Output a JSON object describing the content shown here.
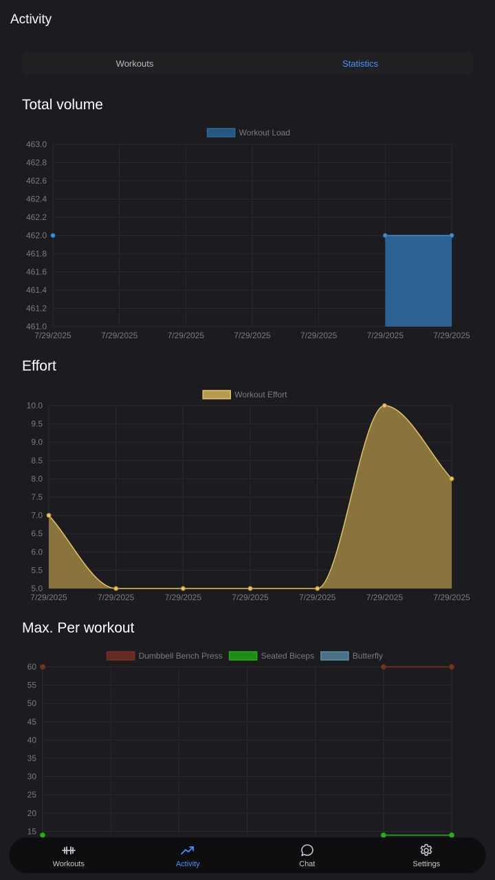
{
  "app": {
    "title": "Activity"
  },
  "tabs": [
    {
      "label": "Workouts",
      "active": false
    },
    {
      "label": "Statistics",
      "active": true
    }
  ],
  "sections": {
    "volume": {
      "title": "Total volume"
    },
    "effort": {
      "title": "Effort"
    },
    "max": {
      "title": "Max. Per workout"
    }
  },
  "chart_data": [
    {
      "type": "bar",
      "title": "Total volume",
      "categories": [
        "7/29/2025",
        "7/29/2025",
        "7/29/2025",
        "7/29/2025",
        "7/29/2025",
        "7/29/2025",
        "7/29/2025"
      ],
      "series": [
        {
          "name": "Workout Load",
          "color": "#2d6a9f",
          "points": [
            [
              0,
              462
            ],
            [
              5,
              462
            ],
            [
              6,
              462
            ]
          ]
        }
      ],
      "ylim": [
        461,
        463
      ],
      "ytick_step": 0.2,
      "grid": true,
      "legend": "top-center"
    },
    {
      "type": "area",
      "title": "Effort",
      "categories": [
        "7/29/2025",
        "7/29/2025",
        "7/29/2025",
        "7/29/2025",
        "7/29/2025",
        "7/29/2025",
        "7/29/2025"
      ],
      "series": [
        {
          "name": "Workout Effort",
          "color": "#e8c460",
          "values": [
            7,
            5,
            5,
            5,
            5,
            10,
            8
          ]
        }
      ],
      "ylim": [
        5,
        10
      ],
      "ytick_step": 0.5,
      "grid": true,
      "legend": "top-center"
    },
    {
      "type": "line",
      "title": "Max. Per workout",
      "categories": [
        "7/29/2025",
        "7/29/2025",
        "7/29/2025",
        "7/29/2025",
        "7/29/2025",
        "7/29/2025",
        "7/29/2025"
      ],
      "series": [
        {
          "name": "Dumbbell Bench Press",
          "color": "#7a3220",
          "points": [
            [
              0,
              60
            ],
            [
              5,
              60
            ],
            [
              6,
              60
            ]
          ]
        },
        {
          "name": "Seated Biceps",
          "color": "#22b014",
          "points": [
            [
              0,
              14
            ],
            [
              5,
              14
            ],
            [
              6,
              14
            ]
          ]
        },
        {
          "name": "Butterfly",
          "color": "#5a8fa8",
          "points": []
        }
      ],
      "ylim": [
        10,
        60
      ],
      "ytick_step": 5,
      "visible_ymin": 15,
      "grid": true,
      "legend": "top-center"
    }
  ],
  "bottom_nav": [
    {
      "label": "Workouts",
      "icon": "dumbbell-icon",
      "active": false
    },
    {
      "label": "Activity",
      "icon": "trending-up-icon",
      "active": true
    },
    {
      "label": "Chat",
      "icon": "chat-bubble-icon",
      "active": false
    },
    {
      "label": "Settings",
      "icon": "gear-icon",
      "active": false
    }
  ],
  "colors": {
    "background": "#1c1c20",
    "accent": "#4a90ff",
    "grid": "#2a2a2e",
    "tick": "#7a7a80"
  }
}
